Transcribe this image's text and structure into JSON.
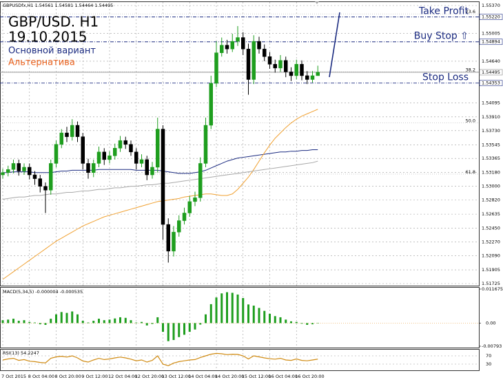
{
  "chart_data": [
    {
      "type": "candlestick",
      "info": "GBPUSDfx,H1 1.54561 1.54581 1.54464 1.54495",
      "title": "GBP/USD. H1",
      "subtitle": "19.10.2015",
      "scenarios": [
        {
          "name": "Основной вариант",
          "color": "#1a2a80"
        },
        {
          "name": "Альтернатива",
          "color": "#e8601c"
        }
      ],
      "categories": [
        "7 Oct 2015",
        null,
        null,
        null,
        null,
        "8 Oct 04:00",
        null,
        null,
        null,
        null,
        "8 Oct 20:00",
        null,
        null,
        null,
        null,
        "9 Oct 12:00",
        null,
        null,
        null,
        null,
        "12 Oct 04:00",
        null,
        null,
        null,
        null,
        "12 Oct 20:00",
        null,
        null,
        null,
        null,
        "13 Oct 12:00",
        null,
        null,
        null,
        null,
        "14 Oct 04:00",
        null,
        null,
        null,
        null,
        "14 Oct 20:00",
        null,
        null,
        null,
        null,
        "15 Oct 12:00",
        null,
        null,
        null,
        null,
        "16 Oct 04:00",
        null,
        null,
        null,
        null,
        "16 Oct 20:00",
        null,
        null,
        null,
        null
      ],
      "open": [
        1.5315,
        1.5318,
        1.5322,
        1.533,
        1.532,
        1.5325,
        1.5315,
        1.531,
        1.53,
        1.5295,
        1.533,
        1.5355,
        1.537,
        1.5365,
        1.538,
        1.5365,
        1.533,
        1.5318,
        1.533,
        1.5345,
        1.5335,
        1.534,
        1.535,
        1.536,
        1.5355,
        1.5345,
        1.533,
        1.5335,
        1.5315,
        1.5325,
        1.5375,
        1.525,
        1.5215,
        1.524,
        1.5255,
        1.5265,
        1.528,
        1.5285,
        1.533,
        1.538,
        1.5435,
        1.5475,
        1.5485,
        1.548,
        1.549,
        1.5495,
        1.548,
        1.544,
        1.549,
        1.548,
        1.547,
        1.546,
        1.5455,
        1.5465,
        1.545,
        1.5445,
        1.546,
        1.5445,
        1.544,
        1.5445
      ],
      "high": [
        1.5323,
        1.5327,
        1.5335,
        1.5335,
        1.533,
        1.533,
        1.532,
        1.5315,
        1.5305,
        1.5335,
        1.536,
        1.5375,
        1.5378,
        1.5388,
        1.5385,
        1.537,
        1.5336,
        1.5335,
        1.5352,
        1.535,
        1.5346,
        1.5356,
        1.5366,
        1.5365,
        1.536,
        1.535,
        1.5342,
        1.534,
        1.5332,
        1.539,
        1.538,
        1.5258,
        1.5248,
        1.5262,
        1.5272,
        1.5287,
        1.5293,
        1.5338,
        1.539,
        1.5445,
        1.549,
        1.5495,
        1.5492,
        1.55,
        1.551,
        1.5502,
        1.5487,
        1.5498,
        1.5496,
        1.5486,
        1.5476,
        1.5466,
        1.5472,
        1.547,
        1.5456,
        1.5466,
        1.5465,
        1.5451,
        1.5451,
        1.54581
      ],
      "low": [
        1.531,
        1.5313,
        1.5317,
        1.5314,
        1.5315,
        1.5309,
        1.5302,
        1.5292,
        1.5265,
        1.5289,
        1.5325,
        1.535,
        1.5358,
        1.536,
        1.5358,
        1.5322,
        1.531,
        1.5312,
        1.5325,
        1.5328,
        1.533,
        1.5335,
        1.5345,
        1.5349,
        1.534,
        1.5322,
        1.5325,
        1.5308,
        1.531,
        1.5318,
        1.523,
        1.52,
        1.5208,
        1.5234,
        1.525,
        1.526,
        1.5274,
        1.528,
        1.5325,
        1.5375,
        1.543,
        1.547,
        1.5474,
        1.5476,
        1.5484,
        1.5472,
        1.542,
        1.5434,
        1.5474,
        1.5464,
        1.5454,
        1.5449,
        1.545,
        1.5443,
        1.5438,
        1.544,
        1.5439,
        1.5434,
        1.5436,
        1.54464
      ],
      "close": [
        1.5318,
        1.5322,
        1.533,
        1.532,
        1.5325,
        1.5315,
        1.531,
        1.53,
        1.5295,
        1.533,
        1.5355,
        1.537,
        1.5365,
        1.538,
        1.5365,
        1.533,
        1.5318,
        1.533,
        1.5345,
        1.5335,
        1.534,
        1.535,
        1.536,
        1.5355,
        1.5345,
        1.533,
        1.5335,
        1.5315,
        1.5325,
        1.5375,
        1.525,
        1.5215,
        1.524,
        1.5255,
        1.5265,
        1.528,
        1.5285,
        1.533,
        1.538,
        1.5435,
        1.5475,
        1.5485,
        1.548,
        1.549,
        1.5495,
        1.548,
        1.544,
        1.549,
        1.548,
        1.547,
        1.546,
        1.5455,
        1.5465,
        1.545,
        1.5445,
        1.546,
        1.5445,
        1.544,
        1.5445,
        1.54495
      ],
      "up_color": "#1e9e1e",
      "down_color": "#000000",
      "series": [
        {
          "color": "#1a2a80",
          "values": [
            1.5318,
            1.5318,
            1.5319,
            1.5319,
            1.5319,
            1.5319,
            1.5318,
            1.5318,
            1.5318,
            1.5318,
            1.5319,
            1.532,
            1.532,
            1.5321,
            1.5321,
            1.5321,
            1.5321,
            1.5321,
            1.5322,
            1.5322,
            1.5322,
            1.5322,
            1.5322,
            1.5322,
            1.5322,
            1.5321,
            1.5321,
            1.5321,
            1.5321,
            1.5321,
            1.532,
            1.5319,
            1.5318,
            1.5317,
            1.5317,
            1.5317,
            1.5318,
            1.5319,
            1.5321,
            1.5324,
            1.5327,
            1.533,
            1.5333,
            1.5335,
            1.5337,
            1.5338,
            1.5339,
            1.534,
            1.5341,
            1.5342,
            1.5343,
            1.5344,
            1.5345,
            1.5345,
            1.5346,
            1.5346,
            1.5347,
            1.5347,
            1.5348,
            1.5348
          ]
        },
        {
          "color": "#f0a030",
          "values": [
            1.5178,
            1.5183,
            1.5188,
            1.5193,
            1.5198,
            1.5203,
            1.5208,
            1.5213,
            1.5218,
            1.5223,
            1.5228,
            1.5232,
            1.5236,
            1.524,
            1.5244,
            1.5248,
            1.5251,
            1.5254,
            1.5257,
            1.526,
            1.5262,
            1.5264,
            1.5266,
            1.5268,
            1.527,
            1.5272,
            1.5274,
            1.5276,
            1.5278,
            1.528,
            1.5281,
            1.5282,
            1.5283,
            1.5284,
            1.5286,
            1.5287,
            1.5288,
            1.5289,
            1.529,
            1.529,
            1.5289,
            1.5288,
            1.5288,
            1.529,
            1.5296,
            1.5304,
            1.5312,
            1.5322,
            1.5333,
            1.5344,
            1.5354,
            1.5363,
            1.537,
            1.5377,
            1.5383,
            1.5388,
            1.5392,
            1.5395,
            1.5398,
            1.5401
          ]
        },
        {
          "color": "#a8a8a8",
          "values": [
            1.5283,
            1.5284,
            1.5285,
            1.5286,
            1.5286,
            1.5287,
            1.5288,
            1.5288,
            1.5289,
            1.529,
            1.529,
            1.5291,
            1.5292,
            1.5292,
            1.5293,
            1.5294,
            1.5294,
            1.5295,
            1.5296,
            1.5296,
            1.5297,
            1.5298,
            1.5298,
            1.5299,
            1.53,
            1.53,
            1.5301,
            1.5302,
            1.5302,
            1.5303,
            1.5304,
            1.5304,
            1.5305,
            1.5306,
            1.5307,
            1.5308,
            1.5309,
            1.531,
            1.5311,
            1.5312,
            1.5313,
            1.5314,
            1.5315,
            1.5316,
            1.5317,
            1.5318,
            1.5319,
            1.532,
            1.5321,
            1.5322,
            1.5323,
            1.5324,
            1.5325,
            1.5326,
            1.5327,
            1.5328,
            1.5329,
            1.533,
            1.5331,
            1.5333
          ]
        }
      ],
      "levels": [
        {
          "name": "Take Profit",
          "value": 1.5522,
          "label": "1.55220",
          "color": "#1a2a80"
        },
        {
          "name": "Buy Stop ⇧",
          "value": 1.54894,
          "label": "1.54894",
          "color": "#1a2a80"
        },
        {
          "value": 1.54495,
          "label": "1.54495",
          "color": "#888888"
        },
        {
          "name": "Stop Loss",
          "value": 1.54353,
          "label": "1.54353",
          "color": "#1a2a80"
        }
      ],
      "fibo": [
        {
          "value": 1.5526,
          "label": "23.6"
        },
        {
          "value": 1.545,
          "label": "38.2"
        },
        {
          "value": 1.5383,
          "label": "50.0"
        },
        {
          "value": 1.5316,
          "label": "61.8"
        }
      ],
      "ylim": [
        1.51725,
        1.55415
      ],
      "yticks": [
        {
          "value": 1.5537,
          "label": "1.55370"
        },
        1.55005,
        {
          "value": 1.5464,
          "label": "1.54640"
        },
        1.54095,
        {
          "value": 1.5391,
          "label": "1.53910"
        },
        {
          "value": 1.5373,
          "label": "1.53730"
        },
        1.53545,
        1.53365,
        {
          "value": 1.5318,
          "label": "1.53180"
        },
        {
          "value": 1.53,
          "label": "1.53000"
        },
        {
          "value": 1.5282,
          "label": "1.52820"
        },
        1.52635,
        {
          "value": 1.5245,
          "label": "1.52450"
        },
        {
          "value": 1.5227,
          "label": "1.52270"
        },
        {
          "value": 1.5209,
          "label": "1.52090"
        },
        1.51905,
        1.51725
      ],
      "grid": true
    },
    {
      "type": "bar",
      "title": "MACD(5,34,5) -0.000004 -0.000535",
      "color": "#1e9e1e",
      "values": [
        0.001,
        0.0012,
        0.0015,
        0.0008,
        0.001,
        0.0004,
        0.0002,
        -0.0004,
        -0.0006,
        0.0015,
        0.003,
        0.0038,
        0.0035,
        0.004,
        0.003,
        0.0008,
        0.0002,
        0.0008,
        0.0015,
        0.001,
        0.0012,
        0.0016,
        0.002,
        0.0018,
        0.001,
        0.0002,
        0.0004,
        -0.0008,
        -0.0003,
        0.002,
        -0.003,
        -0.0062,
        -0.0058,
        -0.0048,
        -0.004,
        -0.003,
        -0.0022,
        -0.0005,
        0.003,
        0.0065,
        0.0088,
        0.0102,
        0.0106,
        0.0104,
        0.0098,
        0.0086,
        0.0064,
        0.006,
        0.0052,
        0.0042,
        0.0032,
        0.0024,
        0.002,
        0.0012,
        0.0006,
        0.0004,
        -0.0002,
        -0.0006,
        -0.0004,
        -4e-06
      ],
      "ylim": [
        -0.00793,
        0.011675
      ],
      "yticks": [
        -0.00793,
        {
          "value": 0,
          "label": "0.00"
        },
        0.011675
      ]
    },
    {
      "type": "line",
      "title": "RSI(13) 54.2247",
      "color": "#d08a10",
      "values": [
        50,
        55,
        58,
        48,
        52,
        44,
        42,
        38,
        36,
        58,
        65,
        68,
        64,
        70,
        60,
        45,
        40,
        50,
        58,
        52,
        55,
        60,
        64,
        60,
        54,
        46,
        50,
        40,
        48,
        70,
        30,
        22,
        35,
        42,
        46,
        50,
        52,
        62,
        70,
        78,
        82,
        80,
        76,
        78,
        77,
        70,
        55,
        70,
        65,
        60,
        56,
        54,
        58,
        50,
        48,
        55,
        48,
        46,
        50,
        54.2247
      ],
      "ylim": [
        0,
        100
      ],
      "yticks": [
        30,
        70
      ]
    }
  ]
}
